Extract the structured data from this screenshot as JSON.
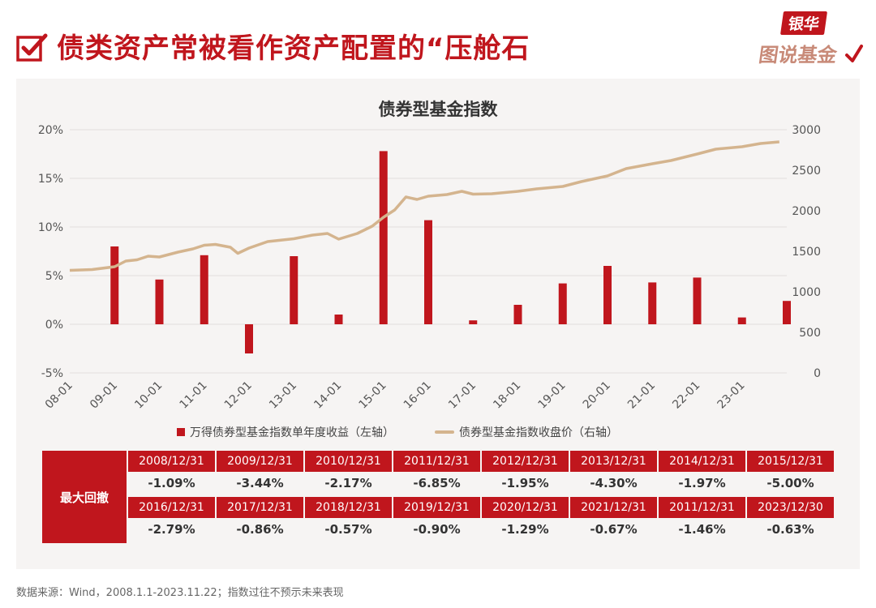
{
  "header": {
    "title": "债类资产常被看作资产配置的“压舱石",
    "brand_top": "银华",
    "brand_bottom": "图说基金"
  },
  "colors": {
    "accent_red": "#c0161d",
    "line_tan": "#d4b48e",
    "panel_bg": "#f6f4f3"
  },
  "chart_data": {
    "type": "bar+line",
    "title": "债券型基金指数",
    "x_ticks": [
      "08-01",
      "09-01",
      "10-01",
      "11-01",
      "12-01",
      "13-01",
      "14-01",
      "15-01",
      "16-01",
      "17-01",
      "18-01",
      "19-01",
      "20-01",
      "21-01",
      "22-01",
      "23-01"
    ],
    "left_axis": {
      "ylim": [
        -5,
        20
      ],
      "ticks": [
        "-5%",
        "0%",
        "5%",
        "10%",
        "15%",
        "20%"
      ]
    },
    "right_axis": {
      "ylim": [
        0,
        3000
      ],
      "ticks": [
        "0",
        "500",
        "1000",
        "1500",
        "2000",
        "2500",
        "3000"
      ]
    },
    "grid": true,
    "legend_position": "bottom",
    "series": [
      {
        "name": "万得债券型基金指数单年度收益（左轴）",
        "type": "bar",
        "axis": "left",
        "x": [
          2008,
          2009,
          2010,
          2011,
          2012,
          2013,
          2014,
          2015,
          2016,
          2017,
          2018,
          2019,
          2020,
          2021,
          2022,
          2023
        ],
        "values": [
          8.0,
          4.6,
          7.1,
          -3.0,
          7.0,
          1.0,
          17.8,
          10.7,
          0.4,
          2.0,
          4.2,
          6.0,
          4.3,
          4.8,
          0.7,
          2.4
        ]
      },
      {
        "name": "债券型基金指数收盘价（右轴）",
        "type": "line",
        "axis": "right",
        "x": [
          "2008-01",
          "2008-07",
          "2009-01",
          "2009-04",
          "2009-07",
          "2009-10",
          "2010-01",
          "2010-06",
          "2010-10",
          "2011-01",
          "2011-04",
          "2011-08",
          "2011-10",
          "2012-01",
          "2012-06",
          "2013-01",
          "2013-06",
          "2013-10",
          "2014-01",
          "2014-06",
          "2014-10",
          "2015-01",
          "2015-04",
          "2015-07",
          "2015-10",
          "2016-01",
          "2016-06",
          "2016-10",
          "2017-01",
          "2017-06",
          "2018-01",
          "2018-06",
          "2019-01",
          "2019-06",
          "2020-01",
          "2020-06",
          "2021-01",
          "2021-06",
          "2022-01",
          "2022-06",
          "2023-01",
          "2023-06",
          "2023-11"
        ],
        "values": [
          1265,
          1275,
          1310,
          1380,
          1395,
          1440,
          1430,
          1490,
          1530,
          1575,
          1585,
          1550,
          1475,
          1540,
          1620,
          1655,
          1700,
          1720,
          1650,
          1720,
          1810,
          1920,
          2010,
          2170,
          2140,
          2180,
          2200,
          2240,
          2205,
          2210,
          2240,
          2270,
          2300,
          2360,
          2430,
          2520,
          2580,
          2620,
          2700,
          2760,
          2790,
          2830,
          2850
        ]
      }
    ]
  },
  "drawdown": {
    "label": "最大回撤",
    "rows": [
      [
        {
          "date": "2008/12/31",
          "value": "-1.09%"
        },
        {
          "date": "2009/12/31",
          "value": "-3.44%"
        },
        {
          "date": "2010/12/31",
          "value": "-2.17%"
        },
        {
          "date": "2011/12/31",
          "value": "-6.85%"
        },
        {
          "date": "2012/12/31",
          "value": "-1.95%"
        },
        {
          "date": "2013/12/31",
          "value": "-4.30%"
        },
        {
          "date": "2014/12/31",
          "value": "-1.97%"
        },
        {
          "date": "2015/12/31",
          "value": "-5.00%"
        }
      ],
      [
        {
          "date": "2016/12/31",
          "value": "-2.79%"
        },
        {
          "date": "2017/12/31",
          "value": "-0.86%"
        },
        {
          "date": "2018/12/31",
          "value": "-0.57%"
        },
        {
          "date": "2019/12/31",
          "value": "-0.90%"
        },
        {
          "date": "2020/12/31",
          "value": "-1.29%"
        },
        {
          "date": "2021/12/31",
          "value": "-0.67%"
        },
        {
          "date": "2011/12/31",
          "value": "-1.46%"
        },
        {
          "date": "2023/12/30",
          "value": "-0.63%"
        }
      ]
    ]
  },
  "footnote": "数据来源：Wind，2008.1.1-2023.11.22；指数过往不预示未来表现"
}
